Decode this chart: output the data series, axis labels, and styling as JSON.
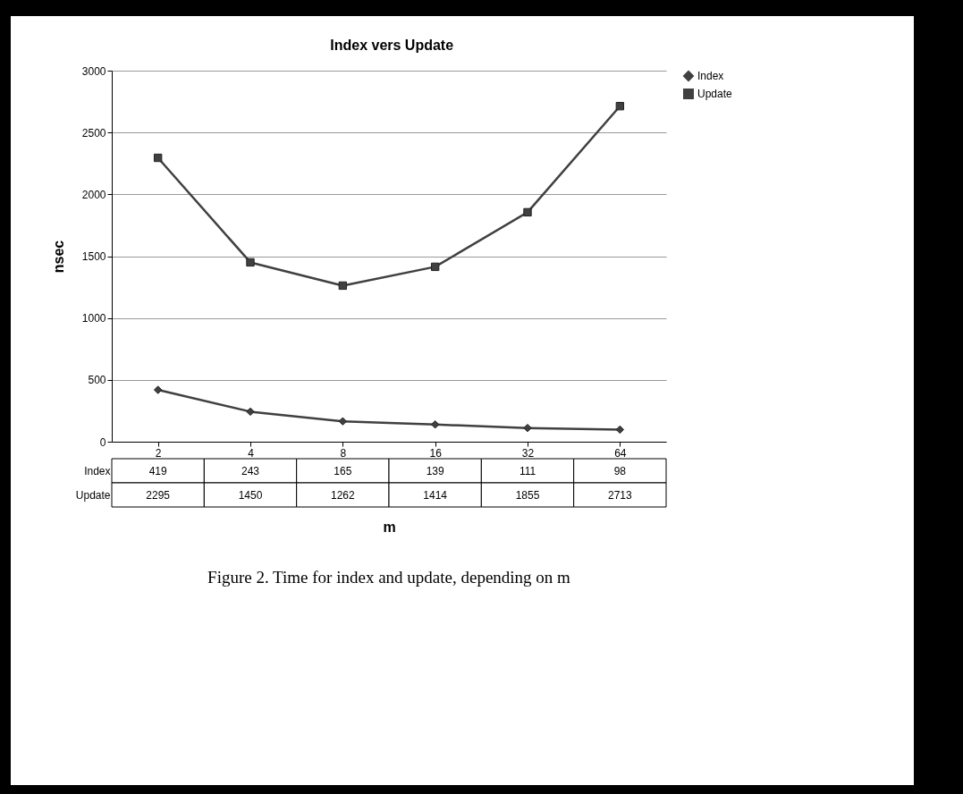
{
  "chart_data": {
    "type": "line",
    "title": "Index vers Update",
    "xlabel": "m",
    "ylabel": "nsec",
    "categories": [
      "2",
      "4",
      "8",
      "16",
      "32",
      "64"
    ],
    "series": [
      {
        "name": "Index",
        "color": "#404040",
        "marker": "diamond",
        "values": [
          419,
          243,
          165,
          139,
          111,
          98
        ]
      },
      {
        "name": "Update",
        "color": "#404040",
        "marker": "square",
        "values": [
          2295,
          1450,
          1262,
          1414,
          1855,
          2713
        ]
      }
    ],
    "ylim": [
      0,
      3000
    ],
    "yticks": [
      0,
      500,
      1000,
      1500,
      2000,
      2500,
      3000
    ],
    "grid": "y",
    "legend": "right",
    "data_labels": true,
    "annotations": [
      "Figure 2. Time for index and update, depending on m"
    ]
  }
}
